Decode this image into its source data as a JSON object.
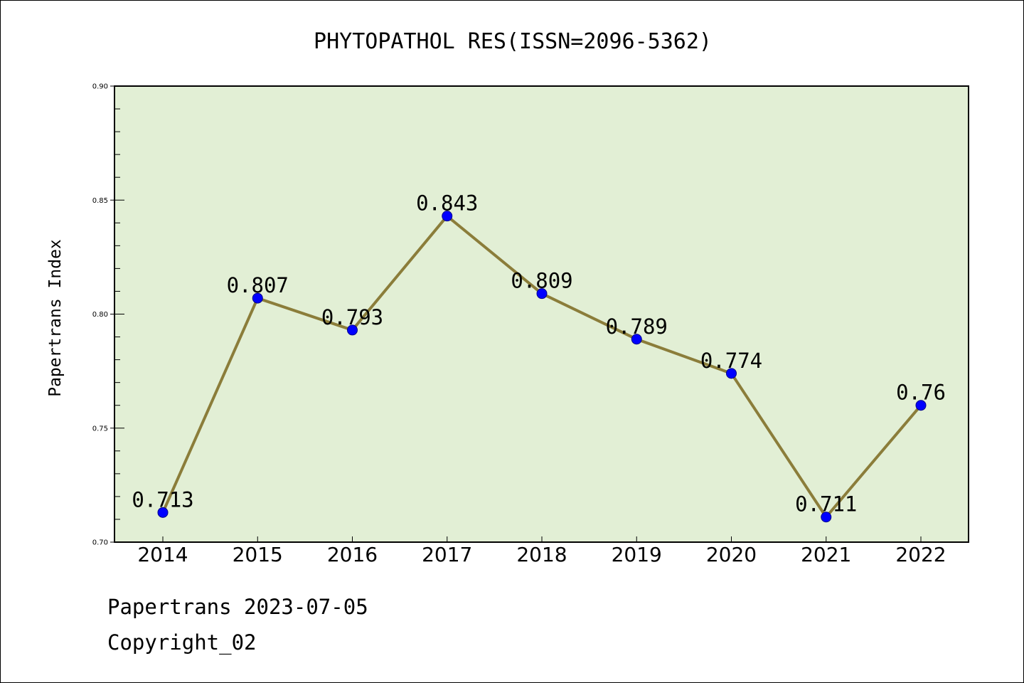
{
  "chart_data": {
    "type": "line",
    "title": "PHYTOPATHOL RES(ISSN=2096-5362)",
    "xlabel": "",
    "ylabel": "Papertrans Index",
    "categories": [
      "2014",
      "2015",
      "2016",
      "2017",
      "2018",
      "2019",
      "2020",
      "2021",
      "2022"
    ],
    "series": [
      {
        "values": [
          0.713,
          0.807,
          0.793,
          0.843,
          0.809,
          0.789,
          0.774,
          0.711,
          0.76
        ],
        "labels": [
          "0.713",
          "0.807",
          "0.793",
          "0.843",
          "0.809",
          "0.789",
          "0.774",
          "0.711",
          "0.76"
        ]
      }
    ],
    "ylim": [
      0.7,
      0.9
    ],
    "yticks": [
      "0.70",
      "0.75",
      "0.80",
      "0.85",
      "0.90"
    ],
    "grid": false,
    "legend": "none",
    "colors": {
      "plot_background": "#e2efd5",
      "line": "#8b7d3a",
      "marker": "#0000ff"
    }
  },
  "footer": {
    "date_text": "Papertrans 2023-07-05",
    "copyright_text": "Copyright_02"
  }
}
